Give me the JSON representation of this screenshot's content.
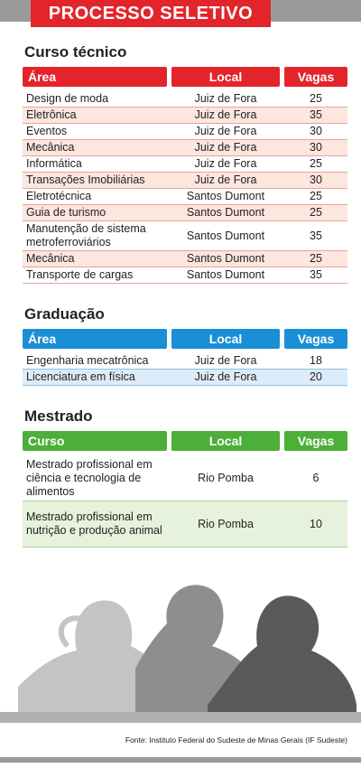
{
  "header": {
    "title": "PROCESSO SELETIVO"
  },
  "sections": [
    {
      "title": "Curso técnico",
      "columns": [
        "Área",
        "Local",
        "Vagas"
      ],
      "rows": [
        [
          "Design de moda",
          "Juiz de Fora",
          25
        ],
        [
          "Eletrônica",
          "Juiz de Fora",
          35
        ],
        [
          "Eventos",
          "Juiz de Fora",
          30
        ],
        [
          "Mecânica",
          "Juiz de Fora",
          30
        ],
        [
          "Informática",
          "Juiz de Fora",
          25
        ],
        [
          "Transações Imobiliárias",
          "Juiz de Fora",
          30
        ],
        [
          "Eletrotécnica",
          "Santos Dumont",
          25
        ],
        [
          "Guia de turismo",
          "Santos Dumont",
          25
        ],
        [
          "Manutenção de sistema metroferroviários",
          "Santos Dumont",
          35
        ],
        [
          "Mecânica",
          "Santos Dumont",
          25
        ],
        [
          "Transporte de cargas",
          "Santos Dumont",
          35
        ]
      ]
    },
    {
      "title": "Graduação",
      "columns": [
        "Área",
        "Local",
        "Vagas"
      ],
      "rows": [
        [
          "Engenharia mecatrônica",
          "Juiz de Fora",
          18
        ],
        [
          "Licenciatura em física",
          "Juiz de Fora",
          20
        ]
      ]
    },
    {
      "title": "Mestrado",
      "columns": [
        "Curso",
        "Local",
        "Vagas"
      ],
      "rows": [
        [
          "Mestrado profissional em ciência e tecnologia de alimentos",
          "Rio Pomba",
          6
        ],
        [
          "Mestrado profissional em nutrição e produção animal",
          "Rio Pomba",
          10
        ]
      ]
    }
  ],
  "source": "Fonte: Instituto Federal do Sudeste de Minas Gerais (IF Sudeste)"
}
